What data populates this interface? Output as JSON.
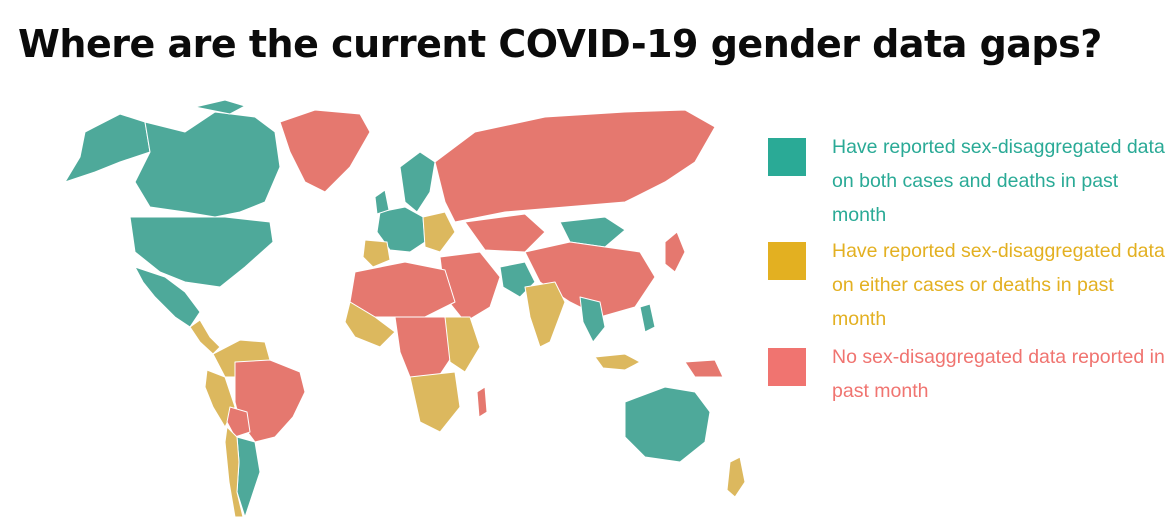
{
  "title": "Where are the current COVID-19 gender data gaps?",
  "colors": {
    "both": "#4ea99a",
    "either": "#dcb85e",
    "none": "#e5786f",
    "nodata": "#d9d9d9",
    "legend_both": "#2aaa96",
    "legend_either": "#e3b021",
    "legend_none": "#f07470"
  },
  "legend": [
    {
      "key": "both",
      "label": "Have reported sex-disaggregated data on both cases and deaths in past month"
    },
    {
      "key": "either",
      "label": "Have reported sex-disaggregated data on either cases or deaths in past month"
    },
    {
      "key": "none",
      "label": "No sex-disaggregated data reported in past month"
    }
  ]
}
